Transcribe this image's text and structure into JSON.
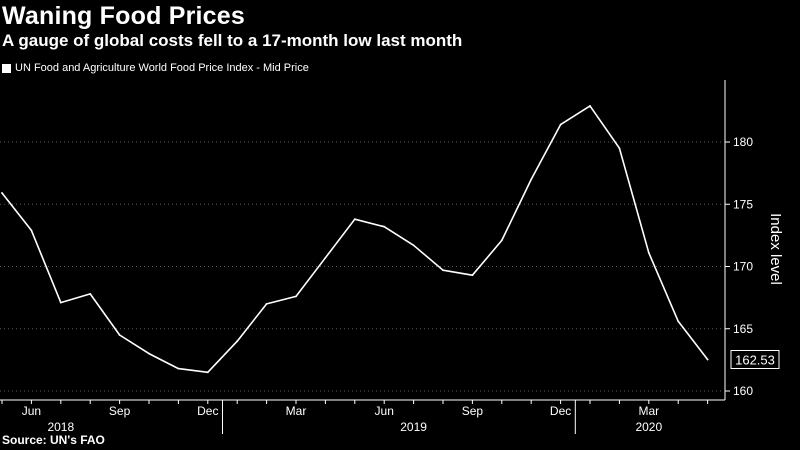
{
  "header": {
    "title": "Waning Food Prices",
    "subtitle": "A gauge of global costs fell to a 17-month low last month"
  },
  "legend": {
    "label": "UN Food and Agriculture World Food Price Index - Mid Price"
  },
  "footer": {
    "source": "Source: UN's FAO"
  },
  "colors": {
    "background": "#000000",
    "line": "#ffffff",
    "axis": "#ffffff",
    "grid": "#5a5a5a"
  },
  "chart_data": {
    "type": "line",
    "title": "Waning Food Prices",
    "subtitle": "A gauge of global costs fell to a 17-month low last month",
    "ylabel": "Index level",
    "xlabel": "",
    "ylim": [
      159.8,
      185.2
    ],
    "yticks": [
      160,
      165,
      170,
      175,
      180
    ],
    "grid": "horizontal dashed",
    "legend_position": "top-left",
    "last_value_label": "162.53",
    "x": [
      "2018-05",
      "2018-06",
      "2018-07",
      "2018-08",
      "2018-09",
      "2018-10",
      "2018-11",
      "2018-12",
      "2019-01",
      "2019-02",
      "2019-03",
      "2019-04",
      "2019-05",
      "2019-06",
      "2019-07",
      "2019-08",
      "2019-09",
      "2019-10",
      "2019-11",
      "2019-12",
      "2020-01",
      "2020-02",
      "2020-03",
      "2020-04",
      "2020-05"
    ],
    "x_ticks": [
      {
        "x": "2018-06",
        "label": "Jun"
      },
      {
        "x": "2018-09",
        "label": "Sep"
      },
      {
        "x": "2018-12",
        "label": "Dec"
      },
      {
        "x": "2019-03",
        "label": "Mar"
      },
      {
        "x": "2019-06",
        "label": "Jun"
      },
      {
        "x": "2019-09",
        "label": "Sep"
      },
      {
        "x": "2019-12",
        "label": "Dec"
      },
      {
        "x": "2020-03",
        "label": "Mar"
      }
    ],
    "x_year_labels": [
      {
        "x": "2018-07",
        "label": "2018"
      },
      {
        "x": "2019-07",
        "label": "2019"
      },
      {
        "x": "2020-03",
        "label": "2020"
      }
    ],
    "x_year_boundaries": [
      "2018-12",
      "2019-12"
    ],
    "series": [
      {
        "values": [
          175.9,
          172.9,
          167.1,
          167.8,
          164.5,
          163.0,
          161.8,
          161.5,
          164.0,
          167.0,
          167.6,
          170.7,
          173.8,
          173.2,
          171.7,
          169.7,
          169.3,
          172.1,
          177.0,
          181.4,
          182.9,
          179.5,
          171.1,
          165.6,
          162.53
        ]
      }
    ]
  }
}
